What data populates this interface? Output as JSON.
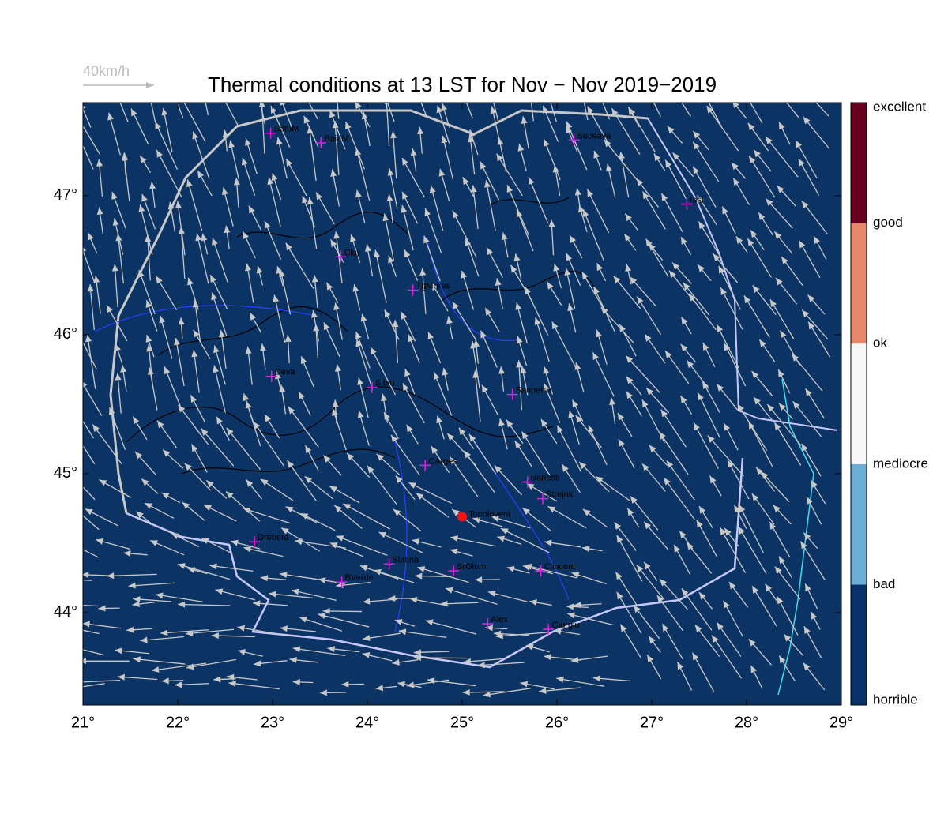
{
  "title": "Thermal conditions at 13 LST for Nov − Nov  2019−2019",
  "scale_label": "40km/h",
  "map": {
    "background": "#0b3464",
    "xlim": [
      21,
      29
    ],
    "ylim": [
      43.335,
      47.67
    ],
    "xticks": [
      {
        "value": 21,
        "label": "21°"
      },
      {
        "value": 22,
        "label": "22°"
      },
      {
        "value": 23,
        "label": "23°"
      },
      {
        "value": 24,
        "label": "24°"
      },
      {
        "value": 25,
        "label": "25°"
      },
      {
        "value": 26,
        "label": "26°"
      },
      {
        "value": 27,
        "label": "27°"
      },
      {
        "value": 28,
        "label": "28°"
      },
      {
        "value": 29,
        "label": "29°"
      }
    ],
    "yticks": [
      {
        "value": 44,
        "label": "44°"
      },
      {
        "value": 45,
        "label": "45°"
      },
      {
        "value": 46,
        "label": "46°"
      },
      {
        "value": 47,
        "label": "47°"
      }
    ],
    "cities": [
      {
        "name": "SatuM",
        "lon": 22.98,
        "lat": 47.45
      },
      {
        "name": "BaiaM",
        "lon": 23.51,
        "lat": 47.38
      },
      {
        "name": "Suceava",
        "lon": 26.18,
        "lat": 47.4
      },
      {
        "name": "Iasi",
        "lon": 27.37,
        "lat": 46.94
      },
      {
        "name": "Cluj",
        "lon": 23.72,
        "lat": 46.56
      },
      {
        "name": "TgMures",
        "lon": 24.48,
        "lat": 46.32
      },
      {
        "name": "Deva",
        "lon": 22.99,
        "lat": 45.7
      },
      {
        "name": "Sibiu",
        "lon": 24.05,
        "lat": 45.62
      },
      {
        "name": "Sanpetru",
        "lon": 25.53,
        "lat": 45.57
      },
      {
        "name": "CArges",
        "lon": 24.61,
        "lat": 45.06
      },
      {
        "name": "Banesti",
        "lon": 25.69,
        "lat": 44.94
      },
      {
        "name": "Strejnic",
        "lon": 25.85,
        "lat": 44.82
      },
      {
        "name": "Drobeta",
        "lon": 22.81,
        "lat": 44.51
      },
      {
        "name": "Slatina",
        "lon": 24.23,
        "lat": 44.35
      },
      {
        "name": "SrGium",
        "lon": 24.91,
        "lat": 44.3
      },
      {
        "name": "Clinceni",
        "lon": 25.83,
        "lat": 44.3
      },
      {
        "name": "BVerde",
        "lon": 23.73,
        "lat": 44.22
      },
      {
        "name": "Alex",
        "lon": 25.27,
        "lat": 43.92
      },
      {
        "name": "Giurgiu",
        "lon": 25.91,
        "lat": 43.88
      }
    ],
    "highlight": {
      "name": "Topoloveni",
      "lon": 25.0,
      "lat": 44.69
    }
  },
  "colorbar": {
    "labels": [
      "horrible",
      "bad",
      "mediocre",
      "ok",
      "good",
      "excellent"
    ],
    "colors": [
      "#08336a",
      "#6baed6",
      "#f7f7f7",
      "#e6866a",
      "#67001f"
    ]
  }
}
